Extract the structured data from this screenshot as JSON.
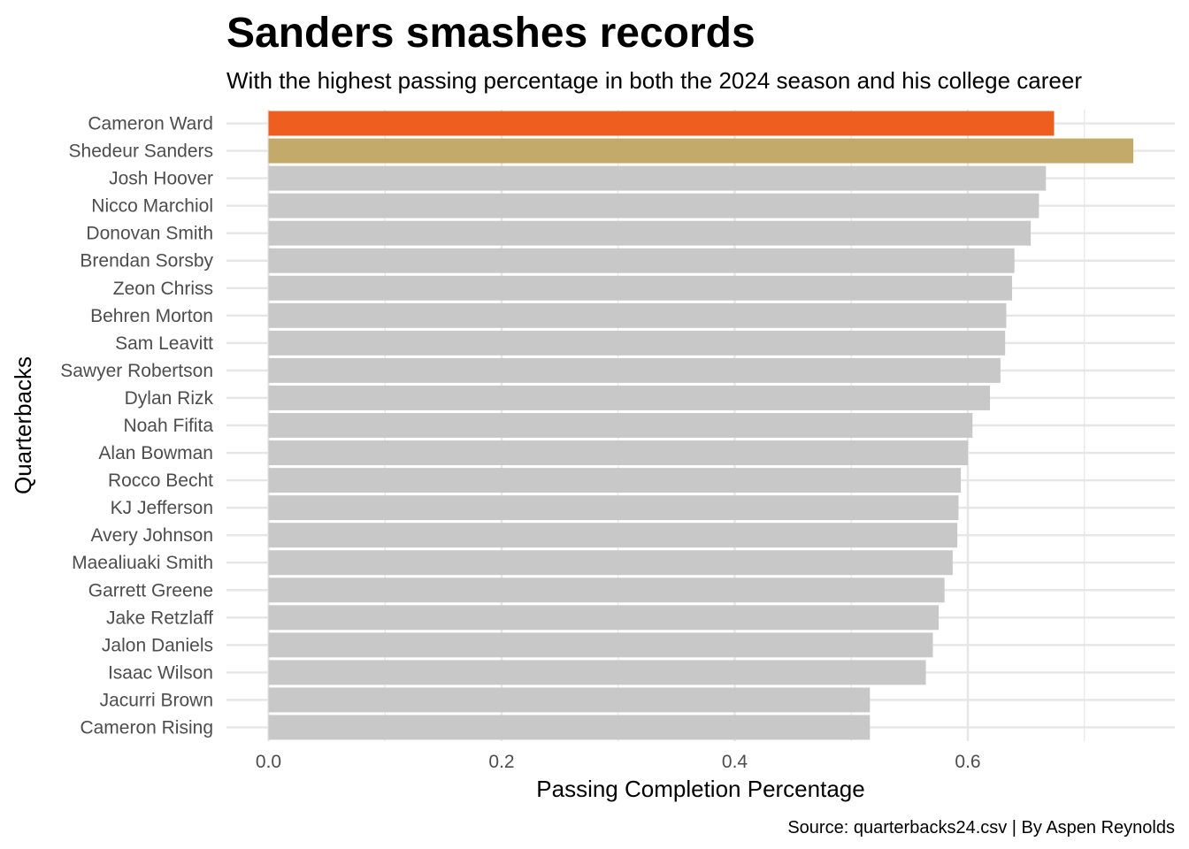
{
  "chart_data": {
    "type": "bar",
    "orientation": "horizontal",
    "title": "Sanders smashes records",
    "subtitle": "With the highest passing percentage in both the 2024 season and his college career",
    "caption": "Source: quarterbacks24.csv | By Aspen Reynolds",
    "xlabel": "Passing Completion Percentage",
    "ylabel": "Quarterbacks",
    "xlim": [
      -0.045,
      0.78
    ],
    "x_ticks": [
      0.0,
      0.2,
      0.4,
      0.6
    ],
    "x_tick_labels": [
      "0.0",
      "0.2",
      "0.4",
      "0.6"
    ],
    "grid": true,
    "legend": "none",
    "categories": [
      "Cameron Ward",
      "Shedeur Sanders",
      "Josh Hoover",
      "Nicco Marchiol",
      "Donovan Smith",
      "Brendan Sorsby",
      "Zeon Chriss",
      "Behren Morton",
      "Sam Leavitt",
      "Sawyer Robertson",
      "Dylan Rizk",
      "Noah Fifita",
      "Alan Bowman",
      "Rocco Becht",
      "KJ Jefferson",
      "Avery Johnson",
      "Maealiuaki Smith",
      "Garrett Greene",
      "Jake Retzlaff",
      "Jalon Daniels",
      "Isaac Wilson",
      "Jacurri Brown",
      "Cameron Rising"
    ],
    "values": [
      0.674,
      0.742,
      0.667,
      0.661,
      0.654,
      0.64,
      0.638,
      0.633,
      0.632,
      0.628,
      0.619,
      0.604,
      0.6,
      0.594,
      0.592,
      0.591,
      0.587,
      0.58,
      0.575,
      0.57,
      0.564,
      0.516,
      0.516
    ],
    "colors": {
      "default": "#c8c8c8",
      "highlight_orange": "#ee5e1f",
      "highlight_gold": "#c4aa6a",
      "grid": "#e6e6e6",
      "axis_text": "#4d4d4d"
    },
    "bar_colors": [
      "#ee5e1f",
      "#c4aa6a",
      "#c8c8c8",
      "#c8c8c8",
      "#c8c8c8",
      "#c8c8c8",
      "#c8c8c8",
      "#c8c8c8",
      "#c8c8c8",
      "#c8c8c8",
      "#c8c8c8",
      "#c8c8c8",
      "#c8c8c8",
      "#c8c8c8",
      "#c8c8c8",
      "#c8c8c8",
      "#c8c8c8",
      "#c8c8c8",
      "#c8c8c8",
      "#c8c8c8",
      "#c8c8c8",
      "#c8c8c8",
      "#c8c8c8"
    ]
  }
}
